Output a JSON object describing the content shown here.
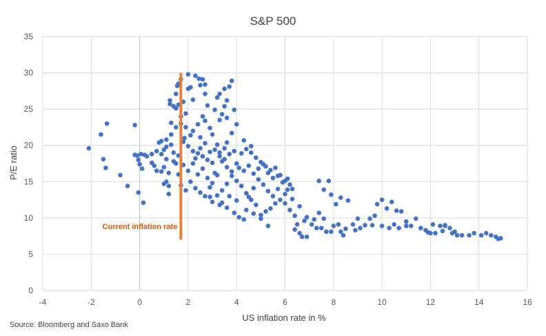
{
  "chart_data": {
    "type": "scatter",
    "title": "S&P 500",
    "xlabel": "US inflation rate in %",
    "ylabel": "P/E ratio",
    "source": "Source: Bloomberg and Saxo Bank",
    "xlim": [
      -4,
      16
    ],
    "ylim": [
      0,
      35
    ],
    "xticks": [
      -4,
      -2,
      0,
      2,
      4,
      6,
      8,
      10,
      12,
      14,
      16
    ],
    "yticks": [
      0,
      5,
      10,
      15,
      20,
      25,
      30,
      35
    ],
    "grid": true,
    "series_color": "#4472C4",
    "annotation": {
      "text": "Current inflation rate",
      "x": 1.7,
      "y_range": [
        7,
        30
      ],
      "color": "#ED7D31",
      "text_color": "#C55A11"
    },
    "points": [
      [
        -2.1,
        19.6
      ],
      [
        -1.6,
        21.5
      ],
      [
        -1.35,
        23.0
      ],
      [
        -1.5,
        18.1
      ],
      [
        -1.4,
        16.9
      ],
      [
        -0.8,
        15.9
      ],
      [
        -0.5,
        14.4
      ],
      [
        -0.2,
        22.8
      ],
      [
        -0.1,
        18.6
      ],
      [
        -0.05,
        18.0
      ],
      [
        0.0,
        17.4
      ],
      [
        0.05,
        18.8
      ],
      [
        0.1,
        16.8
      ],
      [
        0.2,
        18.7
      ],
      [
        -0.2,
        18.7
      ],
      [
        -0.05,
        13.5
      ],
      [
        0.15,
        12.1
      ],
      [
        0.3,
        18.5
      ],
      [
        0.5,
        18.8
      ],
      [
        0.6,
        17.2
      ],
      [
        0.7,
        16.5
      ],
      [
        0.8,
        20.4
      ],
      [
        0.9,
        20.6
      ],
      [
        0.9,
        18.8
      ],
      [
        1.0,
        19.4
      ],
      [
        1.1,
        18.1
      ],
      [
        1.1,
        15.0
      ],
      [
        1.2,
        14.4
      ],
      [
        1.2,
        13.3
      ],
      [
        1.0,
        14.7
      ],
      [
        1.3,
        23.1
      ],
      [
        1.5,
        22.5
      ],
      [
        1.1,
        20.8
      ],
      [
        1.3,
        21.5
      ],
      [
        1.4,
        19.0
      ],
      [
        1.5,
        17.5
      ],
      [
        1.6,
        16.0
      ],
      [
        1.7,
        14.5
      ],
      [
        1.25,
        26.2
      ],
      [
        1.25,
        25.7
      ],
      [
        1.4,
        25.4
      ],
      [
        1.5,
        25.1
      ],
      [
        1.5,
        27.1
      ],
      [
        1.55,
        28.2
      ],
      [
        1.6,
        28.5
      ],
      [
        1.7,
        29.1
      ],
      [
        1.6,
        25.6
      ],
      [
        1.8,
        26.0
      ],
      [
        1.7,
        24.0
      ],
      [
        1.7,
        23.0
      ],
      [
        1.8,
        20.5
      ],
      [
        1.85,
        21.0
      ],
      [
        1.9,
        22.5
      ],
      [
        1.9,
        24.4
      ],
      [
        2.0,
        27.8
      ],
      [
        2.0,
        29.8
      ],
      [
        2.1,
        28.0
      ],
      [
        2.2,
        26.3
      ],
      [
        2.3,
        29.6
      ],
      [
        2.45,
        29.2
      ],
      [
        2.5,
        28.3
      ],
      [
        2.6,
        29.1
      ],
      [
        2.7,
        28.4
      ],
      [
        2.7,
        27.1
      ],
      [
        2.8,
        25.5
      ],
      [
        2.6,
        24.0
      ],
      [
        2.4,
        22.9
      ],
      [
        2.2,
        22.0
      ],
      [
        2.1,
        21.4
      ],
      [
        2.5,
        21.1
      ],
      [
        2.0,
        19.9
      ],
      [
        2.2,
        19.2
      ],
      [
        2.4,
        18.9
      ],
      [
        2.6,
        18.5
      ],
      [
        2.8,
        18.0
      ],
      [
        3.0,
        17.6
      ],
      [
        3.1,
        19.4
      ],
      [
        3.2,
        20.1
      ],
      [
        3.0,
        21.5
      ],
      [
        2.9,
        22.4
      ],
      [
        2.7,
        23.4
      ],
      [
        3.1,
        24.9
      ],
      [
        3.2,
        26.6
      ],
      [
        3.3,
        27.1
      ],
      [
        3.5,
        27.8
      ],
      [
        3.8,
        28.9
      ],
      [
        3.7,
        28.1
      ],
      [
        3.6,
        26.2
      ],
      [
        3.5,
        25.4
      ],
      [
        3.4,
        24.3
      ],
      [
        3.3,
        23.5
      ],
      [
        3.6,
        23.8
      ],
      [
        3.9,
        24.9
      ],
      [
        4.0,
        22.9
      ],
      [
        3.8,
        21.7
      ],
      [
        3.6,
        20.4
      ],
      [
        3.5,
        19.6
      ],
      [
        3.3,
        19.0
      ],
      [
        3.4,
        17.8
      ],
      [
        3.6,
        17.0
      ],
      [
        3.8,
        16.4
      ],
      [
        4.0,
        17.5
      ],
      [
        4.2,
        18.9
      ],
      [
        4.4,
        19.5
      ],
      [
        4.6,
        19.9
      ],
      [
        4.3,
        20.7
      ],
      [
        4.6,
        19.0
      ],
      [
        4.8,
        18.3
      ],
      [
        5.0,
        17.7
      ],
      [
        5.2,
        17.1
      ],
      [
        5.4,
        16.6
      ],
      [
        5.6,
        16.9
      ],
      [
        5.8,
        15.9
      ],
      [
        6.0,
        15.1
      ],
      [
        6.2,
        14.6
      ],
      [
        6.1,
        15.4
      ],
      [
        6.3,
        14.0
      ],
      [
        6.0,
        13.3
      ],
      [
        5.8,
        12.5
      ],
      [
        5.6,
        12.0
      ],
      [
        5.4,
        11.3
      ],
      [
        5.2,
        10.9
      ],
      [
        5.0,
        10.4
      ],
      [
        4.8,
        11.8
      ],
      [
        4.6,
        12.5
      ],
      [
        4.4,
        13.4
      ],
      [
        4.2,
        14.4
      ],
      [
        4.0,
        15.1
      ],
      [
        3.8,
        15.8
      ],
      [
        3.6,
        14.7
      ],
      [
        3.4,
        13.8
      ],
      [
        3.2,
        13.1
      ],
      [
        3.0,
        12.2
      ],
      [
        3.3,
        11.8
      ],
      [
        3.6,
        11.4
      ],
      [
        3.9,
        10.7
      ],
      [
        4.1,
        10.1
      ],
      [
        4.3,
        9.8
      ],
      [
        4.5,
        12.9
      ],
      [
        4.7,
        14.1
      ],
      [
        4.9,
        15.3
      ],
      [
        5.1,
        14.6
      ],
      [
        5.3,
        13.7
      ],
      [
        5.5,
        13.0
      ],
      [
        5.7,
        14.0
      ],
      [
        5.9,
        14.9
      ],
      [
        6.1,
        13.9
      ],
      [
        6.3,
        12.6
      ],
      [
        6.4,
        10.3
      ],
      [
        6.5,
        9.1
      ],
      [
        6.4,
        8.4
      ],
      [
        6.6,
        7.9
      ],
      [
        6.7,
        7.4
      ],
      [
        6.9,
        7.4
      ],
      [
        6.8,
        9.6
      ],
      [
        6.9,
        10.1
      ],
      [
        7.1,
        9.1
      ],
      [
        7.3,
        8.6
      ],
      [
        7.5,
        8.6
      ],
      [
        7.6,
        9.9
      ],
      [
        7.4,
        10.7
      ],
      [
        7.7,
        8.1
      ],
      [
        7.9,
        8.1
      ],
      [
        8.0,
        8.9
      ],
      [
        8.2,
        9.1
      ],
      [
        8.3,
        8.1
      ],
      [
        8.4,
        7.6
      ],
      [
        8.1,
        11.9
      ],
      [
        7.9,
        13.2
      ],
      [
        7.6,
        13.9
      ],
      [
        7.4,
        15.1
      ],
      [
        7.8,
        15.1
      ],
      [
        8.3,
        12.8
      ],
      [
        8.6,
        12.4
      ],
      [
        8.8,
        9.1
      ],
      [
        8.9,
        8.3
      ],
      [
        9.1,
        8.6
      ],
      [
        9.3,
        9.0
      ],
      [
        9.5,
        9.9
      ],
      [
        9.7,
        10.3
      ],
      [
        9.8,
        11.9
      ],
      [
        10.0,
        12.5
      ],
      [
        10.2,
        11.3
      ],
      [
        10.4,
        12.2
      ],
      [
        10.6,
        11.0
      ],
      [
        10.8,
        10.9
      ],
      [
        10.5,
        9.1
      ],
      [
        10.0,
        8.9
      ],
      [
        10.3,
        8.6
      ],
      [
        10.7,
        8.6
      ],
      [
        11.0,
        8.9
      ],
      [
        11.2,
        8.9
      ],
      [
        11.4,
        9.9
      ],
      [
        11.6,
        8.6
      ],
      [
        11.8,
        8.3
      ],
      [
        12.0,
        7.9
      ],
      [
        12.2,
        7.9
      ],
      [
        12.1,
        9.1
      ],
      [
        12.4,
        8.9
      ],
      [
        12.6,
        8.9
      ],
      [
        12.8,
        8.6
      ],
      [
        12.9,
        7.9
      ],
      [
        13.1,
        7.6
      ],
      [
        13.3,
        7.6
      ],
      [
        13.6,
        7.6
      ],
      [
        13.8,
        7.9
      ],
      [
        14.1,
        7.6
      ],
      [
        14.3,
        7.9
      ],
      [
        14.5,
        7.6
      ],
      [
        14.7,
        7.4
      ],
      [
        14.8,
        7.1
      ],
      [
        14.9,
        7.2
      ],
      [
        12.6,
        9.0
      ],
      [
        11.9,
        8.0
      ],
      [
        2.0,
        16.5
      ],
      [
        2.2,
        17.5
      ],
      [
        2.4,
        16.0
      ],
      [
        2.6,
        16.8
      ],
      [
        2.8,
        15.5
      ],
      [
        3.0,
        14.8
      ],
      [
        3.2,
        15.9
      ],
      [
        1.0,
        17.0
      ],
      [
        1.2,
        16.2
      ],
      [
        1.4,
        17.8
      ],
      [
        1.6,
        18.6
      ],
      [
        1.8,
        17.3
      ],
      [
        0.5,
        17.6
      ],
      [
        0.7,
        19.2
      ],
      [
        0.9,
        16.4
      ],
      [
        1.1,
        19.8
      ],
      [
        1.3,
        20.1
      ],
      [
        3.7,
        13.0
      ],
      [
        4.0,
        12.4
      ],
      [
        4.4,
        11.1
      ],
      [
        4.7,
        10.6
      ],
      [
        5.0,
        9.9
      ],
      [
        5.3,
        8.9
      ],
      [
        2.9,
        14.2
      ],
      [
        3.1,
        16.2
      ],
      [
        2.3,
        18.2
      ],
      [
        2.5,
        19.6
      ],
      [
        2.7,
        20.3
      ],
      [
        2.9,
        19.1
      ],
      [
        3.3,
        18.5
      ],
      [
        3.5,
        18.1
      ],
      [
        3.7,
        18.8
      ],
      [
        3.9,
        19.2
      ],
      [
        4.1,
        16.9
      ],
      [
        4.3,
        16.5
      ],
      [
        4.5,
        17.2
      ],
      [
        4.7,
        16.1
      ],
      [
        4.9,
        16.8
      ],
      [
        5.1,
        17.4
      ],
      [
        5.3,
        16.2
      ],
      [
        5.5,
        15.5
      ],
      [
        5.7,
        15.8
      ],
      [
        6.2,
        11.1
      ],
      [
        6.6,
        11.6
      ],
      [
        6.0,
        12.0
      ],
      [
        1.9,
        13.8
      ],
      [
        2.1,
        15.0
      ],
      [
        2.3,
        14.1
      ],
      [
        2.5,
        13.5
      ],
      [
        2.7,
        13.0
      ],
      [
        2.9,
        12.9
      ],
      [
        3.4,
        12.1
      ],
      [
        7.2,
        9.8
      ],
      [
        8.5,
        8.5
      ],
      [
        9.0,
        9.9
      ],
      [
        9.6,
        9.0
      ],
      [
        11.0,
        9.5
      ],
      [
        12.5,
        8.2
      ],
      [
        13.0,
        8.1
      ]
    ]
  }
}
